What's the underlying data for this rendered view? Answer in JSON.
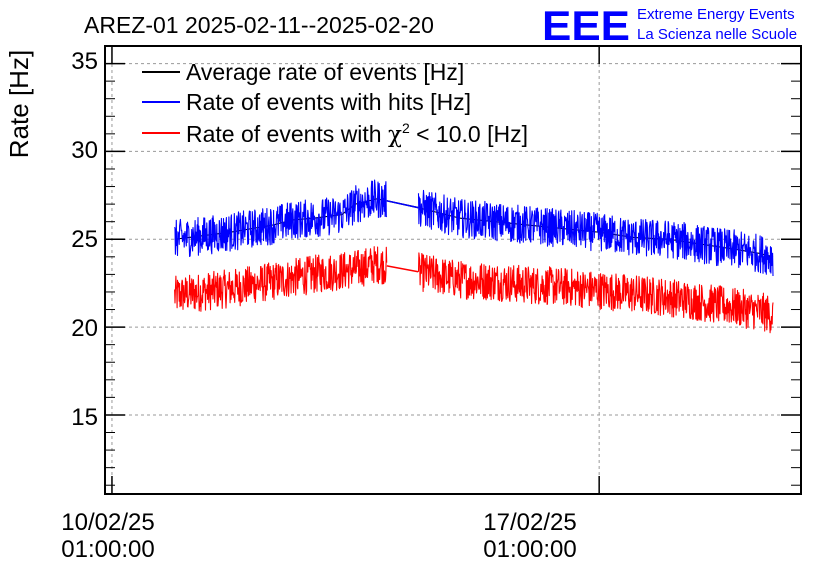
{
  "chart_data": {
    "type": "line",
    "title": "AREZ-01 2025-02-11--2025-02-20",
    "ylabel": "Rate [Hz]",
    "xlabel": "",
    "ylim": [
      10.5,
      36
    ],
    "xlim_days": [
      -0.1,
      9.9
    ],
    "x_unit": "days since 10/02/25 01:00:00",
    "grid": true,
    "yticks": [
      "15",
      "20",
      "25",
      "30",
      "35"
    ],
    "ytick_values": [
      15,
      20,
      25,
      30,
      35
    ],
    "xticks": [
      {
        "value": 0,
        "date": "10/02/25",
        "time": "01:00:00"
      },
      {
        "value": 7,
        "date": "17/02/25",
        "time": "01:00:00"
      }
    ],
    "legend_position": "top-left",
    "series": [
      {
        "name": "Average rate of events [Hz]",
        "color": "#000000",
        "noise": 0,
        "x": [
          0.9,
          1.3,
          1.7,
          2.0,
          2.3,
          2.6,
          2.9,
          3.3,
          3.5,
          3.8,
          4.2,
          4.6,
          5.0,
          5.5,
          6.0,
          6.5,
          7.0,
          7.5,
          8.0,
          8.5,
          9.0,
          9.3,
          9.5
        ],
        "values": [
          25.0,
          25.2,
          25.4,
          25.6,
          25.8,
          26.1,
          26.2,
          26.4,
          27.0,
          27.3,
          27.0,
          26.6,
          26.2,
          26.0,
          25.8,
          25.6,
          25.4,
          25.1,
          25.0,
          24.7,
          24.4,
          24.2,
          24.0
        ]
      },
      {
        "name": "Rate of events with hits [Hz]",
        "color": "#0000ff",
        "noise": 1.1,
        "x": [
          0.9,
          1.3,
          1.7,
          2.0,
          2.3,
          2.6,
          2.9,
          3.3,
          3.5,
          3.8,
          4.2,
          4.6,
          5.0,
          5.5,
          6.0,
          6.5,
          7.0,
          7.5,
          8.0,
          8.5,
          9.0,
          9.3,
          9.5
        ],
        "values": [
          25.0,
          25.2,
          25.4,
          25.6,
          25.8,
          26.1,
          26.2,
          26.4,
          27.0,
          27.3,
          27.0,
          26.6,
          26.2,
          26.0,
          25.8,
          25.6,
          25.4,
          25.1,
          25.0,
          24.7,
          24.4,
          24.2,
          24.0
        ]
      },
      {
        "name": "Rate of events with χ² < 10.0 [Hz]",
        "color": "#ff0000",
        "noise": 1.1,
        "x": [
          0.9,
          1.3,
          1.7,
          2.0,
          2.3,
          2.6,
          2.9,
          3.3,
          3.5,
          3.8,
          4.2,
          4.6,
          5.0,
          5.5,
          6.0,
          6.5,
          7.0,
          7.5,
          8.0,
          8.5,
          9.0,
          9.3,
          9.5
        ],
        "values": [
          21.8,
          22.0,
          22.2,
          22.4,
          22.6,
          22.8,
          23.0,
          23.2,
          23.3,
          23.6,
          23.3,
          23.0,
          22.7,
          22.6,
          22.4,
          22.3,
          22.1,
          21.9,
          21.7,
          21.4,
          21.1,
          20.9,
          20.7
        ]
      }
    ],
    "gap": {
      "from": 3.95,
      "to": 4.4
    }
  },
  "logo": {
    "text": "EEE",
    "line1": "Extreme Energy Events",
    "line2": "La Scienza nelle Scuole",
    "color": "#0000ff"
  },
  "legend": {
    "black_label": "Average rate of events [Hz]",
    "blue_label": "Rate of events with hits [Hz]",
    "red_prefix": "Rate of events with ",
    "red_chi": "χ",
    "red_sup": "2",
    "red_suffix": " < 10.0 [Hz]"
  }
}
